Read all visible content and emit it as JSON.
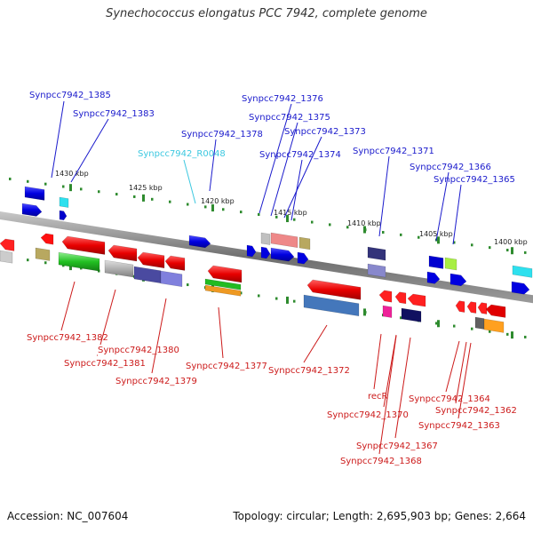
{
  "title": "Synechococcus elongatus PCC 7942, complete genome",
  "footer": {
    "accession": "Accession: NC_007604",
    "summary": "Topology: circular; Length: 2,695,903 bp; Genes: 2,664"
  },
  "colors": {
    "forward_label": "#1a1acc",
    "reverse_label": "#cc1a1a",
    "rna_label": "#3cc8e0",
    "backbone": "#777777",
    "ticks": "#2e8b2e"
  },
  "scale_labels": [
    "1430 kbp",
    "1425 kbp",
    "1420 kbp",
    "1415 kbp",
    "1410 kbp",
    "1405 kbp",
    "1400 kbp"
  ],
  "forward_genes": [
    "Synpcc7942_1385",
    "Synpcc7942_1383",
    "Synpcc7942_R0048",
    "Synpcc7942_1378",
    "Synpcc7942_1376",
    "Synpcc7942_1375",
    "Synpcc7942_1373",
    "Synpcc7942_1374",
    "Synpcc7942_1371",
    "Synpcc7942_1366",
    "Synpcc7942_1365"
  ],
  "reverse_genes": [
    "Synpcc7942_1382",
    "Synpcc7942_1380",
    "Synpcc7942_1381",
    "Synpcc7942_1379",
    "Synpcc7942_1377",
    "Synpcc7942_1372",
    "recR",
    "Synpcc7942_1370",
    "Synpcc7942_1367",
    "Synpcc7942_1368",
    "Synpcc7942_1364",
    "Synpcc7942_1362",
    "Synpcc7942_1363"
  ]
}
